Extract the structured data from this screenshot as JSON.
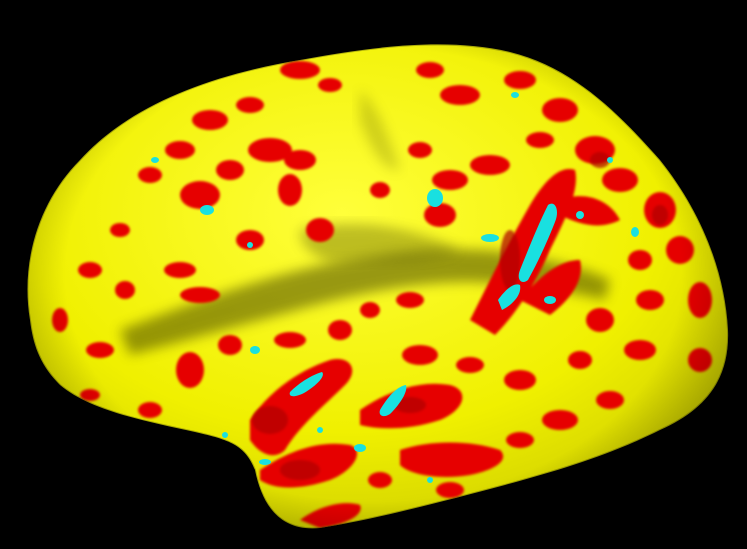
{
  "scene": {
    "subject": "inflated-cortical-surface",
    "view": "lateral",
    "background_color": "#000000"
  },
  "colors": {
    "surface_base": "#f2f200",
    "surface_highlight": "#ffff55",
    "surface_shadow": "#5a5a00",
    "activation_red": "#e60000",
    "activation_dark_red": "#b00000",
    "activation_cyan": "#19e0e0"
  }
}
